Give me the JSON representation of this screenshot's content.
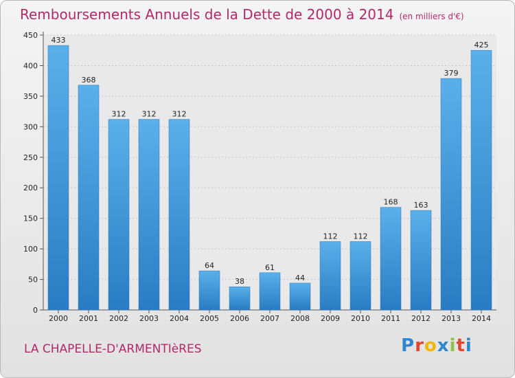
{
  "chart_data": {
    "type": "bar",
    "title": "Remboursements Annuels de la Dette de 2000 à 2014",
    "subtitle": "(en milliers d'€)",
    "categories": [
      "2000",
      "2001",
      "2002",
      "2003",
      "2004",
      "2005",
      "2006",
      "2007",
      "2008",
      "2009",
      "2010",
      "2011",
      "2012",
      "2013",
      "2014"
    ],
    "values": [
      433,
      368,
      312,
      312,
      312,
      64,
      38,
      61,
      44,
      112,
      112,
      168,
      163,
      379,
      425
    ],
    "ylim": [
      0,
      450
    ],
    "yticks": [
      0,
      50,
      100,
      150,
      200,
      250,
      300,
      350,
      400,
      450
    ],
    "grid": true,
    "bar_color": "#4a9fdf"
  },
  "footer": {
    "commune": "LA CHAPELLE-D'ARMENTIèRES",
    "logo_letters": [
      "P",
      "r",
      "o",
      "x",
      "i",
      "t",
      "i"
    ],
    "logo_colors": [
      "#2f86d1",
      "#e2462e",
      "#f2b705",
      "#2f86d1",
      "#8bc34a",
      "#e2462e",
      "#2f86d1"
    ]
  }
}
